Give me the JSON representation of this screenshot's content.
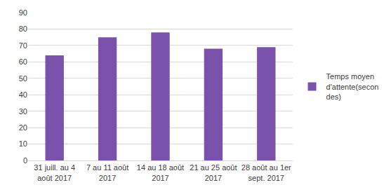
{
  "chart_data": {
    "type": "bar",
    "categories": [
      "31 juill. au 4 août 2017",
      "7 au 11 août 2017",
      "14 au 18 août 2017",
      "21 au 25 août 2017",
      "28 août au 1er sept. 2017"
    ],
    "series": [
      {
        "name": "Temps moyen d'attente(secondes)",
        "color": "#7b52ab",
        "values": [
          64,
          75,
          78,
          68,
          69
        ]
      }
    ],
    "ylim": [
      0,
      90
    ],
    "yticks": [
      0,
      10,
      20,
      30,
      40,
      50,
      60,
      70,
      80,
      90
    ],
    "grid": true,
    "legend": "right"
  }
}
